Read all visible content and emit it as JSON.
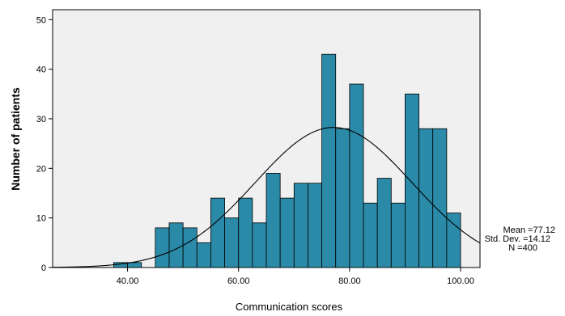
{
  "chart_data": {
    "type": "bar",
    "subtype": "histogram",
    "xlabel": "Communication scores",
    "ylabel": "Number of patients",
    "xlim": [
      26.5,
      103.5
    ],
    "ylim": [
      0,
      52
    ],
    "yticks": [
      0,
      10,
      20,
      30,
      40,
      50
    ],
    "yticklabels": [
      "0",
      "10",
      "20",
      "30",
      "40",
      "50"
    ],
    "xticks": [
      40,
      60,
      80,
      100
    ],
    "xticklabels": [
      "40.00",
      "60.00",
      "80.00",
      "100.00"
    ],
    "bin_width": 2.5,
    "bins": [
      {
        "start": 37.5,
        "value": 1
      },
      {
        "start": 40.0,
        "value": 1
      },
      {
        "start": 45.0,
        "value": 8
      },
      {
        "start": 47.5,
        "value": 9
      },
      {
        "start": 50.0,
        "value": 8
      },
      {
        "start": 52.5,
        "value": 5
      },
      {
        "start": 55.0,
        "value": 14
      },
      {
        "start": 57.5,
        "value": 10
      },
      {
        "start": 60.0,
        "value": 14
      },
      {
        "start": 62.5,
        "value": 9
      },
      {
        "start": 65.0,
        "value": 19
      },
      {
        "start": 67.5,
        "value": 14
      },
      {
        "start": 70.0,
        "value": 17
      },
      {
        "start": 72.5,
        "value": 17
      },
      {
        "start": 75.0,
        "value": 43
      },
      {
        "start": 77.5,
        "value": 28
      },
      {
        "start": 80.0,
        "value": 37
      },
      {
        "start": 82.5,
        "value": 13
      },
      {
        "start": 85.0,
        "value": 18
      },
      {
        "start": 87.5,
        "value": 13
      },
      {
        "start": 90.0,
        "value": 35
      },
      {
        "start": 92.5,
        "value": 28
      },
      {
        "start": 95.0,
        "value": 28
      },
      {
        "start": 97.5,
        "value": 11
      }
    ],
    "normal_curve": {
      "mean": 77.12,
      "sd": 14.12,
      "n": 400
    },
    "stats_text": [
      "Mean =77.12",
      "Std. Dev. =14.12",
      "N =400"
    ],
    "grid": false,
    "colors": {
      "bar_fill": "#2a8aa8",
      "bar_stroke": "#000000",
      "plot_bg": "#f0f0f0",
      "curve": "#000000"
    }
  }
}
